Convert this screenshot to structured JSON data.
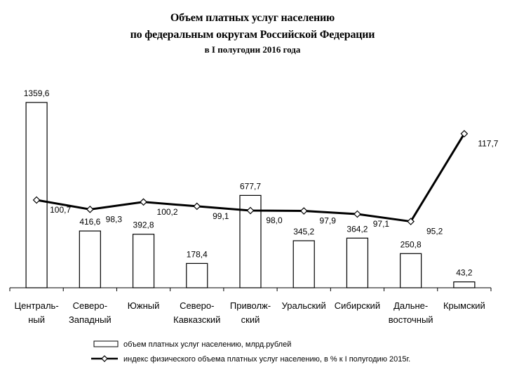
{
  "chart_data": {
    "type": "bar",
    "title": "Объем платных услуг населению",
    "subtitle": "по федеральным округам Российской Федерации",
    "subtitle2": "в I полугодии 2016 года",
    "categories": [
      [
        "Централь-",
        "ный"
      ],
      [
        "Северо-",
        "Западный"
      ],
      [
        "Южный"
      ],
      [
        "Северо-",
        "Кавказский"
      ],
      [
        "Приволж-",
        "ский"
      ],
      [
        "Уральский"
      ],
      [
        "Сибирский"
      ],
      [
        "Дальне-",
        "восточный"
      ],
      [
        "Крымский"
      ]
    ],
    "series": [
      {
        "name": "объем платных услуг населению, млрд.рублей",
        "type": "bar",
        "values": [
          1359.6,
          416.6,
          392.8,
          178.4,
          677.7,
          345.2,
          364.2,
          250.8,
          43.2
        ],
        "labels": [
          "1359,6",
          "416,6",
          "392,8",
          "178,4",
          "677,7",
          "345,2",
          "364,2",
          "250,8",
          "43,2"
        ]
      },
      {
        "name": "индекс физического объема платных услуг населению, в % к I полугодию 2015г.",
        "type": "line",
        "values": [
          100.7,
          98.3,
          100.2,
          99.1,
          98.0,
          97.9,
          97.1,
          95.2,
          117.7
        ],
        "labels": [
          "100,7",
          "98,3",
          "100,2",
          "99,1",
          "98,0",
          "97,9",
          "97,1",
          "95,2",
          "117,7"
        ]
      }
    ],
    "ylim_bars": [
      0,
      1400
    ],
    "ylim_line": [
      80,
      125
    ],
    "grid": false,
    "legend_position": "bottom"
  }
}
